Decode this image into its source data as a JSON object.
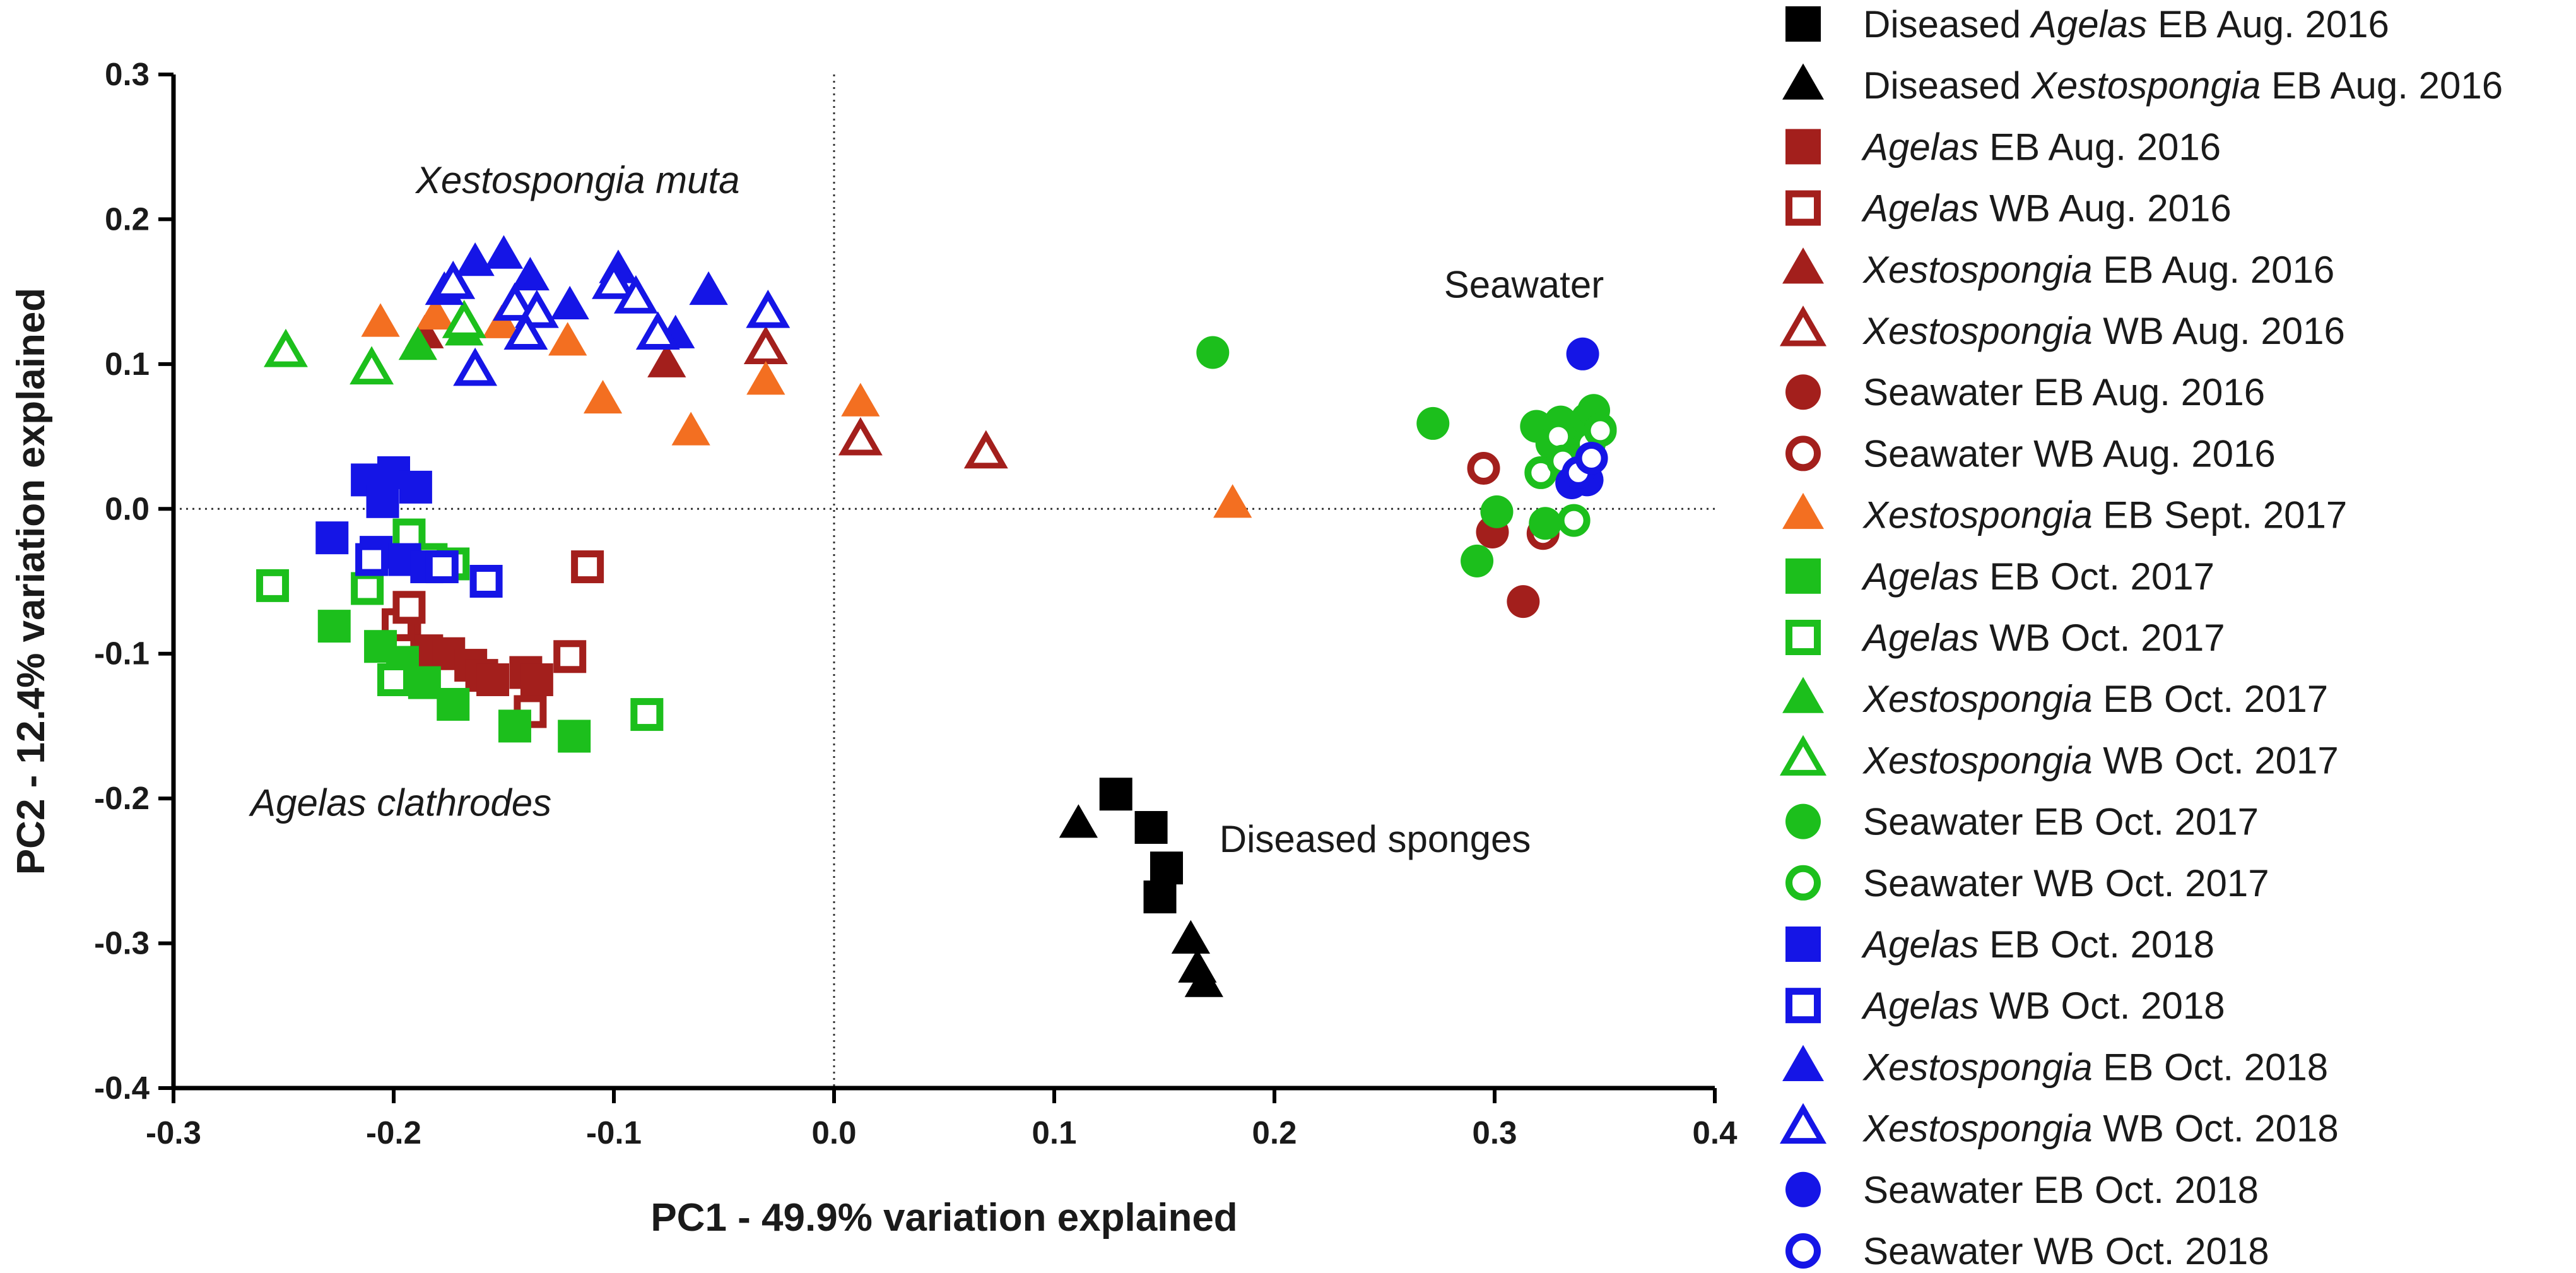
{
  "chart_data": {
    "type": "scatter",
    "title": "",
    "xlabel": "PC1 - 49.9% variation explained",
    "ylabel": "PC2 - 12.4% variation explained",
    "xlim": [
      -0.3,
      0.4
    ],
    "ylim": [
      -0.4,
      0.3
    ],
    "xticks": [
      -0.3,
      -0.2,
      -0.1,
      0.0,
      0.1,
      0.2,
      0.3,
      0.4
    ],
    "yticks": [
      -0.4,
      -0.3,
      -0.2,
      -0.1,
      0.0,
      0.1,
      0.2,
      0.3
    ],
    "xtick_labels": [
      "-0.3",
      "-0.2",
      "-0.1",
      "0.0",
      "0.1",
      "0.2",
      "0.3",
      "0.4"
    ],
    "ytick_labels": [
      "-0.4",
      "-0.3",
      "-0.2",
      "-0.1",
      "0.0",
      "0.1",
      "0.2",
      "0.3"
    ],
    "reference_lines": {
      "x": 0.0,
      "y": 0.0,
      "style": "dotted"
    },
    "annotations": [
      {
        "text": "Xestospongia muta",
        "italic": true,
        "x": -0.19,
        "y": 0.218
      },
      {
        "text": "Agelas clathrodes",
        "italic": true,
        "x": -0.265,
        "y": -0.212
      },
      {
        "text": "Seawater",
        "italic": false,
        "x": 0.277,
        "y": 0.146
      },
      {
        "text": "Diseased sponges",
        "italic": false,
        "x": 0.175,
        "y": -0.237
      }
    ],
    "series": [
      {
        "name": "Diseased Agelas EB Aug. 2016",
        "label_parts": [
          {
            "t": "Diseased ",
            "i": false
          },
          {
            "t": "Agelas",
            "i": true
          },
          {
            "t": " EB Aug. 2016",
            "i": false
          }
        ],
        "marker": "square",
        "filled": true,
        "color": "#000000",
        "points": [
          [
            0.128,
            -0.197
          ],
          [
            0.144,
            -0.22
          ],
          [
            0.151,
            -0.248
          ],
          [
            0.148,
            -0.268
          ]
        ]
      },
      {
        "name": "Diseased Xestospongia EB Aug. 2016",
        "label_parts": [
          {
            "t": "Diseased ",
            "i": false
          },
          {
            "t": "Xestospongia",
            "i": true
          },
          {
            "t": " EB Aug. 2016",
            "i": false
          }
        ],
        "marker": "triangle",
        "filled": true,
        "color": "#000000",
        "points": [
          [
            0.111,
            -0.218
          ],
          [
            0.162,
            -0.298
          ],
          [
            0.165,
            -0.318
          ],
          [
            0.168,
            -0.328
          ]
        ]
      },
      {
        "name": "Agelas EB Aug. 2016",
        "label_parts": [
          {
            "t": "Agelas",
            "i": true
          },
          {
            "t": " EB Aug. 2016",
            "i": false
          }
        ],
        "marker": "square",
        "filled": true,
        "color": "#a31f1c",
        "points": [
          [
            -0.195,
            -0.08
          ],
          [
            -0.185,
            -0.098
          ],
          [
            -0.175,
            -0.1
          ],
          [
            -0.165,
            -0.108
          ],
          [
            -0.16,
            -0.115
          ],
          [
            -0.155,
            -0.118
          ],
          [
            -0.14,
            -0.113
          ],
          [
            -0.135,
            -0.118
          ]
        ]
      },
      {
        "name": "Agelas WB Aug. 2016",
        "label_parts": [
          {
            "t": "Agelas",
            "i": true
          },
          {
            "t": " WB Aug. 2016",
            "i": false
          }
        ],
        "marker": "square",
        "filled": false,
        "color": "#a31f1c",
        "points": [
          [
            -0.112,
            -0.04
          ],
          [
            -0.12,
            -0.102
          ],
          [
            -0.138,
            -0.14
          ],
          [
            -0.198,
            -0.08
          ],
          [
            -0.193,
            -0.068
          ]
        ]
      },
      {
        "name": "Xestospongia EB Aug. 2016",
        "label_parts": [
          {
            "t": "Xestospongia",
            "i": true
          },
          {
            "t": " EB Aug. 2016",
            "i": false
          }
        ],
        "marker": "triangle",
        "filled": true,
        "color": "#a31f1c",
        "points": [
          [
            -0.186,
            0.12
          ],
          [
            -0.076,
            0.1
          ]
        ]
      },
      {
        "name": "Xestospongia WB Aug. 2016",
        "label_parts": [
          {
            "t": "Xestospongia",
            "i": true
          },
          {
            "t": " WB Aug. 2016",
            "i": false
          }
        ],
        "marker": "triangle",
        "filled": false,
        "color": "#a31f1c",
        "points": [
          [
            -0.031,
            0.11
          ],
          [
            0.012,
            0.047
          ],
          [
            0.069,
            0.038
          ]
        ]
      },
      {
        "name": "Seawater EB Aug. 2016",
        "label_parts": [
          {
            "t": "Seawater EB Aug. 2016",
            "i": false
          }
        ],
        "marker": "circle",
        "filled": true,
        "color": "#a31f1c",
        "points": [
          [
            0.299,
            -0.016
          ],
          [
            0.313,
            -0.064
          ]
        ]
      },
      {
        "name": "Seawater WB Aug. 2016",
        "label_parts": [
          {
            "t": "Seawater WB Aug. 2016",
            "i": false
          }
        ],
        "marker": "circle",
        "filled": false,
        "color": "#a31f1c",
        "points": [
          [
            0.295,
            0.028
          ],
          [
            0.322,
            -0.017
          ]
        ]
      },
      {
        "name": "Xestospongia EB Sept. 2017",
        "label_parts": [
          {
            "t": "Xestospongia",
            "i": true
          },
          {
            "t": " EB Sept. 2017",
            "i": false
          }
        ],
        "marker": "triangle",
        "filled": true,
        "color": "#f36f21",
        "points": [
          [
            -0.206,
            0.128
          ],
          [
            -0.181,
            0.133
          ],
          [
            -0.151,
            0.127
          ],
          [
            -0.121,
            0.115
          ],
          [
            -0.105,
            0.075
          ],
          [
            -0.065,
            0.053
          ],
          [
            -0.031,
            0.088
          ],
          [
            0.012,
            0.073
          ],
          [
            0.181,
            0.003
          ]
        ]
      },
      {
        "name": "Agelas EB Oct. 2017",
        "label_parts": [
          {
            "t": "Agelas",
            "i": true
          },
          {
            "t": " EB Oct. 2017",
            "i": false
          }
        ],
        "marker": "square",
        "filled": true,
        "color": "#1cbf1c",
        "points": [
          [
            -0.227,
            -0.081
          ],
          [
            -0.206,
            -0.095
          ],
          [
            -0.196,
            -0.106
          ],
          [
            -0.186,
            -0.12
          ],
          [
            -0.173,
            -0.135
          ],
          [
            -0.145,
            -0.15
          ],
          [
            -0.118,
            -0.157
          ]
        ]
      },
      {
        "name": "Agelas WB Oct. 2017",
        "label_parts": [
          {
            "t": "Agelas",
            "i": true
          },
          {
            "t": " WB Oct. 2017",
            "i": false
          }
        ],
        "marker": "square",
        "filled": false,
        "color": "#1cbf1c",
        "points": [
          [
            -0.255,
            -0.053
          ],
          [
            -0.212,
            -0.055
          ],
          [
            -0.193,
            -0.018
          ],
          [
            -0.183,
            -0.035
          ],
          [
            -0.173,
            -0.038
          ],
          [
            -0.2,
            -0.118
          ],
          [
            -0.085,
            -0.142
          ]
        ]
      },
      {
        "name": "Xestospongia EB Oct. 2017",
        "label_parts": [
          {
            "t": "Xestospongia",
            "i": true
          },
          {
            "t": " EB Oct. 2017",
            "i": false
          }
        ],
        "marker": "triangle",
        "filled": true,
        "color": "#1cbf1c",
        "points": [
          [
            -0.189,
            0.112
          ],
          [
            -0.168,
            0.122
          ]
        ]
      },
      {
        "name": "Xestospongia WB Oct. 2017",
        "label_parts": [
          {
            "t": "Xestospongia",
            "i": true
          },
          {
            "t": " WB Oct. 2017",
            "i": false
          }
        ],
        "marker": "triangle",
        "filled": false,
        "color": "#1cbf1c",
        "points": [
          [
            -0.249,
            0.108
          ],
          [
            -0.21,
            0.096
          ],
          [
            -0.168,
            0.128
          ]
        ]
      },
      {
        "name": "Seawater EB Oct. 2017",
        "label_parts": [
          {
            "t": "Seawater EB Oct. 2017",
            "i": false
          }
        ],
        "marker": "circle",
        "filled": true,
        "color": "#1cbf1c",
        "points": [
          [
            0.172,
            0.108
          ],
          [
            0.272,
            0.059
          ],
          [
            0.292,
            -0.036
          ],
          [
            0.301,
            -0.002
          ],
          [
            0.319,
            0.057
          ],
          [
            0.323,
            -0.01
          ],
          [
            0.326,
            0.045
          ],
          [
            0.33,
            0.06
          ],
          [
            0.335,
            0.04
          ],
          [
            0.34,
            0.052
          ],
          [
            0.342,
            0.062
          ],
          [
            0.345,
            0.068
          ],
          [
            0.348,
            0.055
          ],
          [
            0.337,
            0.03
          ]
        ]
      },
      {
        "name": "Seawater WB Oct. 2017",
        "label_parts": [
          {
            "t": "Seawater WB Oct. 2017",
            "i": false
          }
        ],
        "marker": "circle",
        "filled": false,
        "color": "#1cbf1c",
        "points": [
          [
            0.321,
            0.025
          ],
          [
            0.329,
            0.05
          ],
          [
            0.336,
            -0.008
          ],
          [
            0.339,
            0.028
          ],
          [
            0.343,
            0.045
          ],
          [
            0.348,
            0.054
          ],
          [
            0.331,
            0.033
          ]
        ]
      },
      {
        "name": "Agelas EB Oct. 2018",
        "label_parts": [
          {
            "t": "Agelas",
            "i": true
          },
          {
            "t": " EB Oct. 2018",
            "i": false
          }
        ],
        "marker": "square",
        "filled": true,
        "color": "#1515e6",
        "points": [
          [
            -0.212,
            0.02
          ],
          [
            -0.2,
            0.025
          ],
          [
            -0.19,
            0.015
          ],
          [
            -0.205,
            0.005
          ],
          [
            -0.228,
            -0.02
          ],
          [
            -0.208,
            -0.03
          ],
          [
            -0.195,
            -0.035
          ],
          [
            -0.185,
            -0.04
          ]
        ]
      },
      {
        "name": "Agelas WB Oct. 2018",
        "label_parts": [
          {
            "t": "Agelas",
            "i": true
          },
          {
            "t": " WB Oct. 2018",
            "i": false
          }
        ],
        "marker": "square",
        "filled": false,
        "color": "#1515e6",
        "points": [
          [
            -0.21,
            -0.035
          ],
          [
            -0.178,
            -0.04
          ],
          [
            -0.158,
            -0.05
          ]
        ]
      },
      {
        "name": "Xestospongia EB Oct. 2018",
        "label_parts": [
          {
            "t": "Xestospongia",
            "i": true
          },
          {
            "t": " EB Oct. 2018",
            "i": false
          }
        ],
        "marker": "triangle",
        "filled": true,
        "color": "#1515e6",
        "points": [
          [
            -0.177,
            0.15
          ],
          [
            -0.163,
            0.17
          ],
          [
            -0.15,
            0.175
          ],
          [
            -0.138,
            0.16
          ],
          [
            -0.12,
            0.14
          ],
          [
            -0.098,
            0.165
          ],
          [
            -0.057,
            0.15
          ],
          [
            -0.072,
            0.12
          ]
        ]
      },
      {
        "name": "Xestospongia WB Oct. 2018",
        "label_parts": [
          {
            "t": "Xestospongia",
            "i": true
          },
          {
            "t": " WB Oct. 2018",
            "i": false
          }
        ],
        "marker": "triangle",
        "filled": false,
        "color": "#1515e6",
        "points": [
          [
            -0.173,
            0.155
          ],
          [
            -0.145,
            0.14
          ],
          [
            -0.135,
            0.135
          ],
          [
            -0.1,
            0.155
          ],
          [
            -0.09,
            0.145
          ],
          [
            -0.08,
            0.12
          ],
          [
            -0.03,
            0.135
          ],
          [
            -0.14,
            0.12
          ],
          [
            -0.163,
            0.095
          ]
        ]
      },
      {
        "name": "Seawater EB Oct. 2018",
        "label_parts": [
          {
            "t": "Seawater EB Oct. 2018",
            "i": false
          }
        ],
        "marker": "circle",
        "filled": true,
        "color": "#1515e6",
        "points": [
          [
            0.34,
            0.107
          ],
          [
            0.335,
            0.018
          ],
          [
            0.342,
            0.02
          ]
        ]
      },
      {
        "name": "Seawater WB Oct. 2018",
        "label_parts": [
          {
            "t": "Seawater WB Oct. 2018",
            "i": false
          }
        ],
        "marker": "circle",
        "filled": false,
        "color": "#1515e6",
        "points": [
          [
            0.338,
            0.025
          ],
          [
            0.344,
            0.035
          ]
        ]
      }
    ]
  }
}
